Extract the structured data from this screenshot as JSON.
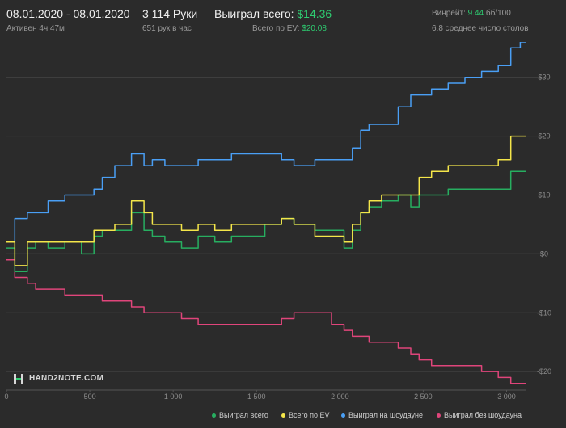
{
  "header": {
    "date_range": "08.01.2020 - 08.01.2020",
    "active": "Активен 4ч 47м",
    "hands": "3 114 Руки",
    "per_hour": "651 рук в час",
    "won_label": "Выиграл всего:",
    "won_value": "$14.36",
    "ev_label": "Всего по EV:",
    "ev_value": "$20.08",
    "winrate_label": "Винрейт:",
    "winrate_value": "9.44",
    "winrate_unit": "бб/100",
    "tables": "6.8 среднее число столов"
  },
  "logo": {
    "text": "HAND2NOTE.COM"
  },
  "colors": {
    "background": "#2b2b2b",
    "won": "#27ae60",
    "ev": "#f4e64a",
    "showdown": "#4a9ff5",
    "nonshowdown": "#e0457b",
    "accent_green": "#2ecc71"
  },
  "chart_data": {
    "type": "line",
    "x_ticks": [
      0,
      500,
      1000,
      1500,
      2000,
      2500,
      3000
    ],
    "x_tick_labels": [
      "0",
      "500",
      "1 000",
      "1 500",
      "2 000",
      "2 500",
      "3 000"
    ],
    "y_ticks": [
      -20,
      -10,
      0,
      10,
      20,
      30
    ],
    "y_tick_labels": [
      "-$20",
      "-$10",
      "$0",
      "$10",
      "$20",
      "$30"
    ],
    "xlim": [
      0,
      3114
    ],
    "ylim": [
      -23,
      36
    ],
    "grid": true,
    "legend_position": "bottom-right",
    "x": [
      0,
      100,
      150,
      200,
      300,
      400,
      500,
      550,
      600,
      700,
      800,
      850,
      900,
      1000,
      1100,
      1200,
      1300,
      1400,
      1500,
      1600,
      1700,
      1750,
      1800,
      1900,
      2000,
      2050,
      2100,
      2150,
      2200,
      2300,
      2400,
      2450,
      2500,
      2600,
      2700,
      2800,
      2900,
      3000,
      3050,
      3114
    ],
    "series": [
      {
        "name": "Выиграл всего",
        "color": "#27ae60",
        "values": [
          1,
          -3,
          1,
          2,
          1,
          2,
          0,
          3,
          4,
          4,
          7,
          4,
          3,
          2,
          1,
          3,
          2,
          3,
          3,
          5,
          6,
          5,
          5,
          4,
          4,
          1,
          4,
          7,
          8,
          9,
          10,
          8,
          10,
          10,
          11,
          11,
          11,
          11,
          14,
          14
        ]
      },
      {
        "name": "Всего по EV",
        "color": "#f4e64a",
        "values": [
          2,
          -2,
          2,
          2,
          2,
          2,
          2,
          4,
          4,
          5,
          9,
          7,
          5,
          5,
          4,
          5,
          4,
          5,
          5,
          5,
          6,
          5,
          5,
          3,
          3,
          2,
          5,
          7,
          9,
          10,
          10,
          10,
          13,
          14,
          15,
          15,
          15,
          16,
          20,
          20
        ]
      },
      {
        "name": "Выиграл на шоудауне",
        "color": "#4a9ff5",
        "values": [
          2,
          6,
          7,
          7,
          9,
          10,
          10,
          11,
          13,
          15,
          17,
          15,
          16,
          15,
          15,
          16,
          16,
          17,
          17,
          17,
          16,
          15,
          15,
          16,
          16,
          16,
          18,
          21,
          22,
          22,
          25,
          27,
          27,
          28,
          29,
          30,
          31,
          32,
          35,
          36
        ]
      },
      {
        "name": "Выиграл без шоудауна",
        "color": "#e0457b",
        "values": [
          -1,
          -4,
          -5,
          -6,
          -6,
          -7,
          -7,
          -7,
          -8,
          -8,
          -9,
          -10,
          -10,
          -10,
          -11,
          -12,
          -12,
          -12,
          -12,
          -12,
          -11,
          -10,
          -10,
          -10,
          -12,
          -13,
          -14,
          -14,
          -15,
          -15,
          -16,
          -17,
          -18,
          -19,
          -19,
          -19,
          -20,
          -21,
          -22,
          -22
        ]
      }
    ]
  }
}
